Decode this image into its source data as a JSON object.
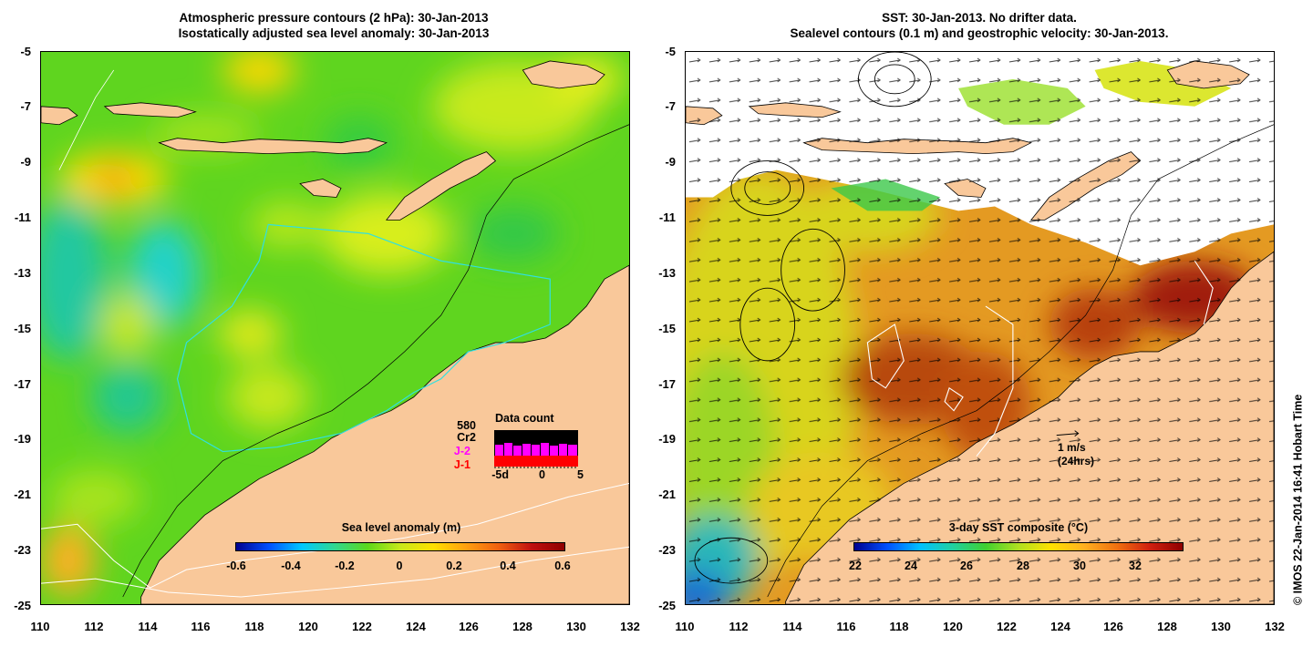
{
  "left_panel": {
    "title_line1": "Atmospheric pressure contours (2 hPa): 30-Jan-2013",
    "title_line2": "Isostatically adjusted sea level anomaly: 30-Jan-2013",
    "colorbar": {
      "label": "Sea level anomaly (m)",
      "ticks": [
        "-0.6",
        "-0.4",
        "-0.2",
        "0",
        "0.2",
        "0.4",
        "0.6"
      ]
    },
    "data_count": {
      "title": "Data count",
      "total": "580",
      "missions": [
        "Cr2",
        "J-2",
        "J-1"
      ],
      "mission_colors": [
        "#000000",
        "#ff00ff",
        "#ff0000"
      ],
      "axis_ticks": [
        "-5d",
        "0",
        "5"
      ]
    }
  },
  "right_panel": {
    "title_line1": "SST: 30-Jan-2013. No drifter data.",
    "title_line2": "Sealevel contours (0.1 m) and geostrophic velocity: 30-Jan-2013.",
    "colorbar": {
      "label": "3-day SST composite (°C)",
      "ticks": [
        "22",
        "24",
        "26",
        "28",
        "30",
        "32"
      ]
    },
    "velocity_scale": {
      "line1": "1 m/s",
      "line2": "(24hrs)"
    }
  },
  "axes": {
    "y_ticks": [
      "-5",
      "-7",
      "-9",
      "-11",
      "-13",
      "-15",
      "-17",
      "-19",
      "-21",
      "-23",
      "-25"
    ],
    "x_ticks": [
      "110",
      "112",
      "114",
      "116",
      "118",
      "120",
      "122",
      "124",
      "126",
      "128",
      "130",
      "132"
    ]
  },
  "copyright": "© IMOS 22-Jan-2014 16:41 Hobart Time",
  "colors": {
    "land": "#f9c89a",
    "ocean_base_left": "#66dd22",
    "ocean_base_right": "#e89a2a",
    "no_data": "#ffffff"
  }
}
